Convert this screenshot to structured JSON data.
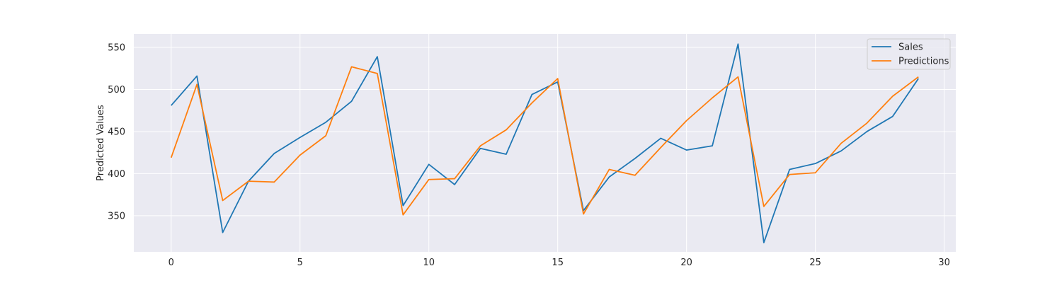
{
  "chart_data": {
    "type": "line",
    "title": "",
    "xlabel": "",
    "ylabel": "Predicted Values",
    "xlim": [
      -1.45,
      30.45
    ],
    "ylim": [
      307,
      566
    ],
    "x_ticks": [
      0,
      5,
      10,
      15,
      20,
      25,
      30
    ],
    "y_ticks": [
      350,
      400,
      450,
      500,
      550
    ],
    "grid": true,
    "legend_position": "top-right",
    "x": [
      0,
      1,
      2,
      3,
      4,
      5,
      6,
      7,
      8,
      9,
      10,
      11,
      12,
      13,
      14,
      15,
      16,
      17,
      18,
      19,
      20,
      21,
      22,
      23,
      24,
      25,
      26,
      27,
      28,
      29
    ],
    "series": [
      {
        "name": "Sales",
        "color": "#1f77b4",
        "values": [
          481,
          516,
          330,
          391,
          424,
          443,
          461,
          486,
          539,
          362,
          411,
          387,
          430,
          423,
          494,
          509,
          356,
          396,
          418,
          442,
          428,
          433,
          554,
          318,
          405,
          412,
          427,
          450,
          468,
          513
        ]
      },
      {
        "name": "Predictions",
        "color": "#ff7f0e",
        "values": [
          419,
          506,
          368,
          391,
          390,
          422,
          445,
          527,
          519,
          351,
          393,
          394,
          433,
          452,
          484,
          513,
          352,
          405,
          398,
          431,
          463,
          490,
          515,
          361,
          399,
          401,
          436,
          460,
          492,
          515
        ]
      }
    ],
    "colors": {
      "plot_background": "#eaeaf2",
      "grid": "#ffffff",
      "text": "#262626"
    }
  }
}
